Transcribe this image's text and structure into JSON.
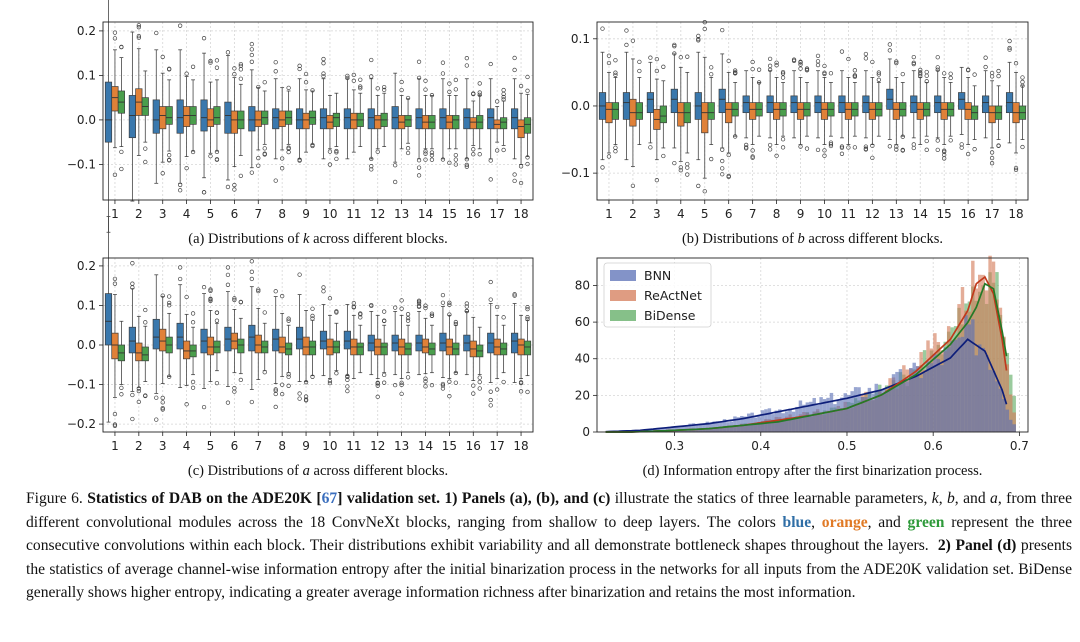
{
  "colors": {
    "blue": "#3a78ad",
    "orange": "#e08138",
    "green": "#4a9e4c",
    "bnn": "#5a6fb5",
    "reactnet": "#d47b58",
    "bidense": "#5dab62",
    "kde_bnn": "#0d1e7a",
    "kde_reactnet": "#c0391c",
    "kde_bidense": "#247a27"
  },
  "panels": [
    {
      "id": "a",
      "caption": "(a) Distributions of k across different blocks.",
      "caption_pre": "(a) Distributions of ",
      "caption_var": "k",
      "caption_post": " across different blocks.",
      "yticks": [
        "−0.1",
        "0.0",
        "0.1",
        "0.2"
      ]
    },
    {
      "id": "b",
      "caption": "(b) Distributions of b across different blocks.",
      "caption_pre": "(b) Distributions of ",
      "caption_var": "b",
      "caption_post": " across different blocks.",
      "yticks": [
        "−0.1",
        "0.0",
        "0.1"
      ]
    },
    {
      "id": "c",
      "caption": "(c) Distributions of a across different blocks.",
      "caption_pre": "(c) Distributions of ",
      "caption_var": "a",
      "caption_post": " across different blocks.",
      "yticks": [
        "−0.2",
        "−0.1",
        "0.0",
        "0.1",
        "0.2"
      ]
    },
    {
      "id": "d",
      "caption": "(d) Information entropy after the first binarization process.",
      "yticks": [
        "0",
        "20",
        "40",
        "60",
        "80"
      ],
      "xticks": [
        "0.3",
        "0.4",
        "0.5",
        "0.6",
        "0.7"
      ]
    }
  ],
  "block_labels": [
    "1",
    "2",
    "3",
    "4",
    "5",
    "6",
    "7",
    "8",
    "9",
    "10",
    "11",
    "12",
    "13",
    "14",
    "15",
    "16",
    "17",
    "18"
  ],
  "legend": [
    "BNN",
    "ReActNet",
    "BiDense"
  ],
  "chart_data": [
    {
      "type": "box",
      "panel": "a",
      "x": [
        1,
        2,
        3,
        4,
        5,
        6,
        7,
        8,
        9,
        10,
        11,
        12,
        13,
        14,
        15,
        16,
        17,
        18
      ],
      "series": [
        {
          "name": "blue",
          "median": [
            0.0,
            0.01,
            0.0,
            0.005,
            0.005,
            0.01,
            0.0,
            0.005,
            0.0,
            0.005,
            0.005,
            0.005,
            0.005,
            0.005,
            0.005,
            0.005,
            0.005,
            0.005
          ],
          "q1": [
            -0.05,
            -0.04,
            -0.03,
            -0.03,
            -0.025,
            -0.03,
            -0.025,
            -0.02,
            -0.02,
            -0.02,
            -0.02,
            -0.02,
            -0.02,
            -0.02,
            -0.02,
            -0.02,
            -0.02,
            -0.02
          ],
          "q3": [
            0.085,
            0.055,
            0.045,
            0.045,
            0.045,
            0.04,
            0.03,
            0.025,
            0.025,
            0.025,
            0.025,
            0.025,
            0.03,
            0.025,
            0.025,
            0.025,
            0.025,
            0.025
          ]
        },
        {
          "name": "orange",
          "median": [
            0.05,
            0.04,
            0.01,
            0.01,
            0.0,
            0.0,
            0.0,
            0.0,
            0.0,
            -0.005,
            0.0,
            0.0,
            -0.005,
            -0.005,
            -0.005,
            -0.005,
            -0.01,
            -0.015
          ],
          "q1": [
            0.02,
            0.01,
            -0.02,
            -0.015,
            -0.015,
            -0.03,
            -0.015,
            -0.015,
            -0.02,
            -0.02,
            -0.02,
            -0.02,
            -0.02,
            -0.02,
            -0.02,
            -0.02,
            -0.02,
            -0.04
          ],
          "q3": [
            0.075,
            0.07,
            0.03,
            0.03,
            0.025,
            0.02,
            0.02,
            0.02,
            0.015,
            0.01,
            0.015,
            0.01,
            0.01,
            0.01,
            0.01,
            0.005,
            0.0,
            0.0
          ]
        },
        {
          "name": "green",
          "median": [
            0.04,
            0.03,
            0.005,
            0.01,
            0.005,
            0.0,
            0.005,
            0.005,
            0.005,
            0.005,
            0.0,
            0.0,
            0.0,
            -0.005,
            0.0,
            -0.005,
            -0.005,
            -0.01
          ],
          "q1": [
            0.015,
            0.01,
            -0.01,
            -0.01,
            -0.01,
            -0.02,
            -0.01,
            -0.01,
            -0.01,
            -0.015,
            -0.015,
            -0.015,
            -0.015,
            -0.02,
            -0.02,
            -0.02,
            -0.02,
            -0.03
          ],
          "q3": [
            0.065,
            0.05,
            0.03,
            0.03,
            0.03,
            0.02,
            0.02,
            0.02,
            0.02,
            0.015,
            0.015,
            0.015,
            0.01,
            0.01,
            0.01,
            0.01,
            0.005,
            0.005
          ]
        }
      ]
    },
    {
      "type": "box",
      "panel": "b",
      "x": [
        1,
        2,
        3,
        4,
        5,
        6,
        7,
        8,
        9,
        10,
        11,
        12,
        13,
        14,
        15,
        16,
        17,
        18
      ],
      "series": [
        {
          "name": "blue",
          "median": [
            0.0,
            0.005,
            0.01,
            0.01,
            0.0,
            0.01,
            0.005,
            0.005,
            0.005,
            0.005,
            0.005,
            0.005,
            0.01,
            0.005,
            0.005,
            0.01,
            0.005,
            0.005
          ],
          "q1": [
            -0.02,
            -0.02,
            -0.01,
            -0.01,
            -0.02,
            -0.01,
            -0.01,
            -0.01,
            -0.01,
            -0.01,
            -0.01,
            -0.01,
            -0.005,
            -0.01,
            -0.01,
            -0.005,
            -0.01,
            -0.01
          ],
          "q3": [
            0.02,
            0.02,
            0.02,
            0.025,
            0.02,
            0.025,
            0.015,
            0.015,
            0.015,
            0.015,
            0.015,
            0.015,
            0.025,
            0.015,
            0.015,
            0.02,
            0.015,
            0.02
          ]
        },
        {
          "name": "orange",
          "median": [
            -0.005,
            -0.01,
            -0.02,
            -0.01,
            -0.01,
            -0.005,
            -0.005,
            -0.005,
            -0.005,
            -0.005,
            -0.005,
            -0.005,
            -0.005,
            -0.005,
            -0.005,
            -0.005,
            -0.01,
            -0.01
          ],
          "q1": [
            -0.025,
            -0.03,
            -0.035,
            -0.03,
            -0.04,
            -0.025,
            -0.02,
            -0.02,
            -0.02,
            -0.02,
            -0.02,
            -0.02,
            -0.02,
            -0.02,
            -0.02,
            -0.02,
            -0.025,
            -0.025
          ],
          "q3": [
            0.005,
            0.01,
            -0.005,
            0.005,
            0.005,
            0.005,
            0.005,
            0.005,
            0.005,
            0.005,
            0.005,
            0.005,
            0.005,
            0.005,
            0.005,
            0.005,
            0.0,
            0.005
          ]
        },
        {
          "name": "green",
          "median": [
            -0.005,
            -0.01,
            -0.015,
            -0.01,
            -0.01,
            -0.005,
            -0.005,
            -0.005,
            -0.005,
            -0.005,
            -0.005,
            -0.005,
            -0.005,
            -0.005,
            -0.005,
            -0.01,
            -0.01,
            -0.01
          ],
          "q1": [
            -0.02,
            -0.02,
            -0.025,
            -0.025,
            -0.02,
            -0.015,
            -0.015,
            -0.015,
            -0.015,
            -0.015,
            -0.015,
            -0.015,
            -0.015,
            -0.015,
            -0.015,
            -0.02,
            -0.02,
            -0.02
          ],
          "q3": [
            0.005,
            0.005,
            0.0,
            0.005,
            0.005,
            0.005,
            0.005,
            0.005,
            0.005,
            0.005,
            0.005,
            0.005,
            0.005,
            0.005,
            0.005,
            0.0,
            0.0,
            0.0
          ]
        }
      ]
    },
    {
      "type": "box",
      "panel": "c",
      "x": [
        1,
        2,
        3,
        4,
        5,
        6,
        7,
        8,
        9,
        10,
        11,
        12,
        13,
        14,
        15,
        16,
        17,
        18
      ],
      "series": [
        {
          "name": "blue",
          "median": [
            0.06,
            0.01,
            0.02,
            0.02,
            0.01,
            0.015,
            0.02,
            0.015,
            0.015,
            0.01,
            0.01,
            0.005,
            0.005,
            0.005,
            0.005,
            0.005,
            0.005,
            0.01
          ],
          "q1": [
            0.0,
            -0.02,
            -0.01,
            -0.01,
            -0.02,
            -0.015,
            -0.015,
            -0.015,
            -0.01,
            -0.01,
            -0.01,
            -0.015,
            -0.015,
            -0.015,
            -0.015,
            -0.015,
            -0.02,
            -0.02
          ],
          "q3": [
            0.13,
            0.045,
            0.065,
            0.055,
            0.04,
            0.045,
            0.05,
            0.04,
            0.045,
            0.035,
            0.035,
            0.025,
            0.025,
            0.025,
            0.03,
            0.025,
            0.03,
            0.03
          ]
        },
        {
          "name": "orange",
          "median": [
            0.0,
            -0.02,
            0.01,
            -0.015,
            -0.005,
            0.01,
            0.0,
            -0.005,
            -0.005,
            -0.005,
            -0.005,
            -0.005,
            -0.005,
            -0.005,
            -0.005,
            -0.01,
            -0.005,
            0.0
          ],
          "q1": [
            -0.035,
            -0.04,
            -0.015,
            -0.035,
            -0.025,
            -0.01,
            -0.02,
            -0.02,
            -0.025,
            -0.025,
            -0.025,
            -0.025,
            -0.025,
            -0.02,
            -0.025,
            -0.03,
            -0.025,
            -0.025
          ],
          "q3": [
            0.03,
            0.005,
            0.04,
            0.01,
            0.02,
            0.03,
            0.025,
            0.02,
            0.02,
            0.015,
            0.015,
            0.015,
            0.015,
            0.015,
            0.015,
            0.01,
            0.015,
            0.015
          ]
        },
        {
          "name": "green",
          "median": [
            -0.02,
            -0.025,
            0.0,
            -0.015,
            -0.005,
            0.0,
            -0.005,
            -0.01,
            -0.005,
            -0.005,
            -0.005,
            -0.005,
            -0.01,
            -0.01,
            -0.01,
            -0.015,
            -0.01,
            -0.005
          ],
          "q1": [
            -0.04,
            -0.04,
            -0.02,
            -0.03,
            -0.02,
            -0.02,
            -0.02,
            -0.025,
            -0.025,
            -0.02,
            -0.025,
            -0.025,
            -0.025,
            -0.025,
            -0.025,
            -0.03,
            -0.025,
            -0.025
          ],
          "q3": [
            0.0,
            -0.005,
            0.02,
            0.0,
            0.01,
            0.015,
            0.01,
            0.005,
            0.01,
            0.01,
            0.005,
            0.005,
            0.005,
            0.005,
            0.005,
            0.0,
            0.005,
            0.01
          ]
        }
      ]
    },
    {
      "type": "histogram",
      "panel": "d",
      "xlim": [
        0.21,
        0.71
      ],
      "ylim": [
        0,
        95
      ],
      "series": [
        {
          "name": "BNN",
          "x": [
            0.26,
            0.3,
            0.34,
            0.38,
            0.42,
            0.46,
            0.5,
            0.54,
            0.58,
            0.62,
            0.64,
            0.66,
            0.68,
            0.69
          ],
          "y": [
            1,
            3,
            5,
            8,
            12,
            16,
            20,
            25,
            33,
            44,
            55,
            48,
            25,
            8
          ]
        },
        {
          "name": "ReActNet",
          "x": [
            0.3,
            0.34,
            0.38,
            0.42,
            0.46,
            0.5,
            0.54,
            0.58,
            0.62,
            0.64,
            0.65,
            0.66,
            0.67,
            0.68,
            0.69
          ],
          "y": [
            1,
            2,
            4,
            7,
            10,
            14,
            22,
            36,
            55,
            72,
            88,
            92,
            82,
            55,
            18
          ]
        },
        {
          "name": "BiDense",
          "x": [
            0.3,
            0.34,
            0.38,
            0.42,
            0.46,
            0.5,
            0.54,
            0.58,
            0.62,
            0.64,
            0.65,
            0.66,
            0.67,
            0.68,
            0.69
          ],
          "y": [
            1,
            2,
            4,
            6,
            10,
            14,
            22,
            34,
            52,
            65,
            74,
            88,
            85,
            60,
            30
          ]
        }
      ]
    }
  ],
  "caption": {
    "figure_label": "Figure 6.",
    "title_a": "Statistics of DAB on the ADE20K [",
    "title_ref": "67",
    "title_b": "] validation set.",
    "p1_head": "1) Panels (a), (b), and (c)",
    "p1_text_a": " illustrate the statics of three learnable parameters, ",
    "var_k": "k",
    "sep1": ", ",
    "var_b": "b",
    "sep2": ", and ",
    "var_a": "a",
    "p1_text_b": ", from three different convolutional modules across the 18 ConvNeXt blocks, ranging from shallow to deep layers. The colors ",
    "word_blue": "blue",
    "sep3": ", ",
    "word_orange": "orange",
    "sep4": ", and ",
    "word_green": "green",
    "p1_text_c": " represent the three consecutive convolutions within each block. Their distributions exhibit variability and all demonstrate bottleneck shapes throughout the layers.",
    "p2_head": "2) Panel (d)",
    "p2_text": " presents the statistics of average channel-wise information entropy after the initial binarization process in the networks for all inputs from the ADE20K validation set. BiDense generally shows higher entropy, indicating a greater average information richness after binarization and retains the most information."
  }
}
